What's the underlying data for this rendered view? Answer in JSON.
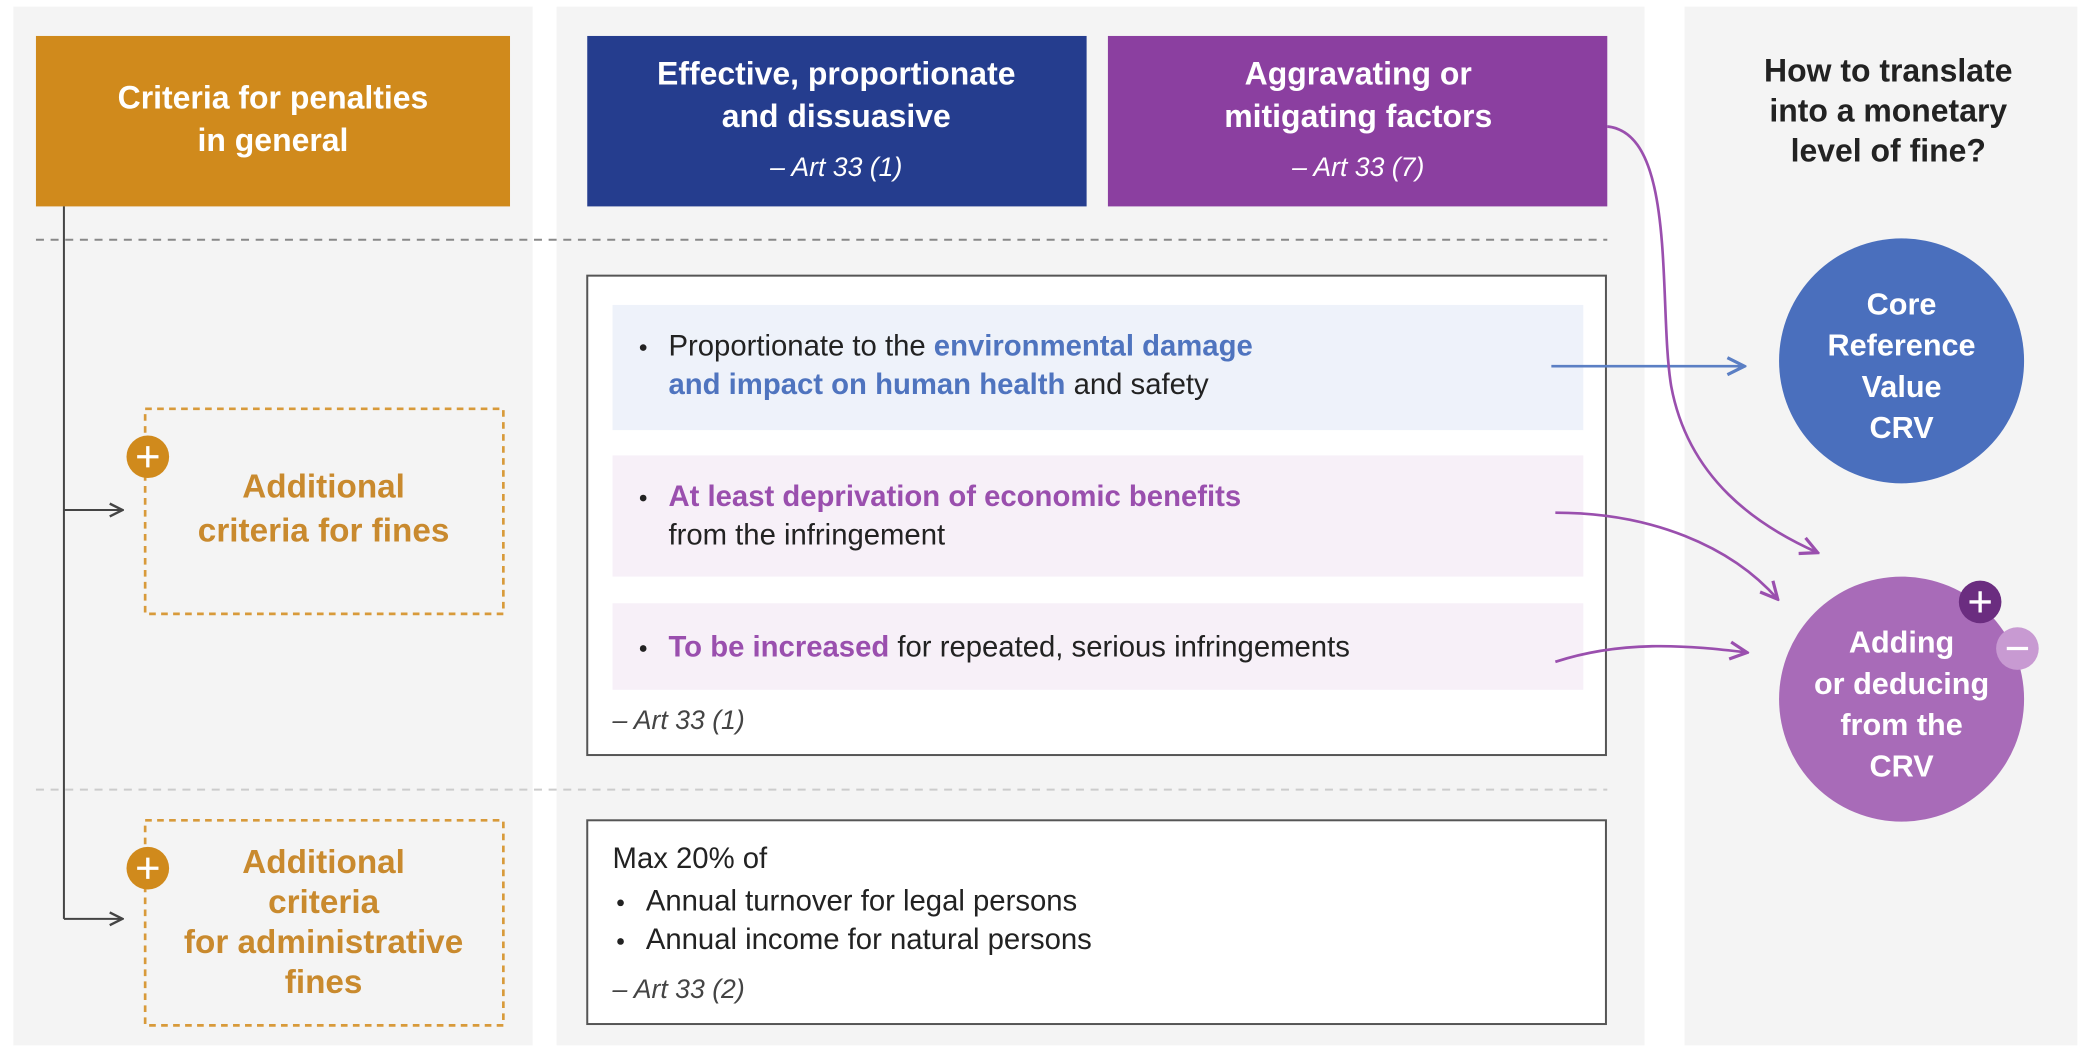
{
  "header": {
    "general": {
      "lines": [
        "Criteria for penalties",
        "in general"
      ]
    },
    "effective": {
      "lines": [
        "Effective, proportionate",
        "and dissuasive"
      ],
      "ref": "– Art 33 (1)"
    },
    "aggravating": {
      "lines": [
        "Aggravating or",
        "mitigating factors"
      ],
      "ref": "– Art 33 (7)"
    },
    "translate": {
      "lines": [
        "How to translate",
        "into a monetary",
        "level of fine?"
      ]
    }
  },
  "fines": {
    "label": [
      "Additional",
      "criteria for fines"
    ],
    "items": [
      {
        "parts": [
          "Proportionate to the ",
          "environmental damage",
          "and impact on human health",
          " and safety"
        ]
      },
      {
        "parts": [
          "At least deprivation of economic benefits",
          "from the infringement"
        ]
      },
      {
        "parts": [
          "To be increased",
          " for repeated, serious infringements"
        ]
      }
    ],
    "ref": "– Art 33 (1)"
  },
  "admin": {
    "label": [
      "Additional",
      "criteria",
      "for administrative",
      "fines"
    ],
    "title": "Max 20% of",
    "items": [
      "Annual turnover for legal persons",
      "Annual income for natural persons"
    ],
    "ref": "– Art 33 (2)"
  },
  "circles": {
    "crv": [
      "Core",
      "Reference",
      "Value",
      "CRV"
    ],
    "adding": [
      "Adding",
      "or deducing",
      "from the",
      "CRV"
    ]
  }
}
